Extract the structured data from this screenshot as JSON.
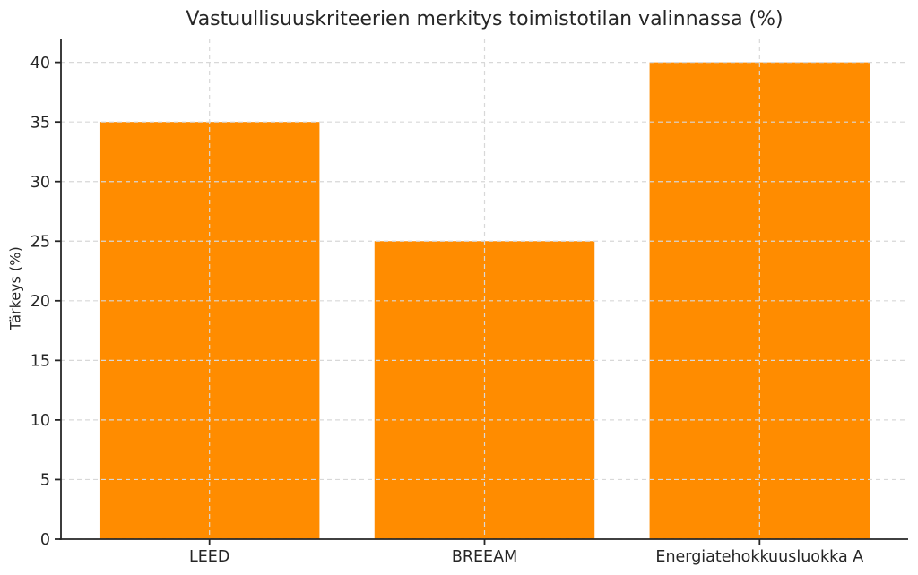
{
  "chart_data": {
    "type": "bar",
    "title": "Vastuullisuuskriteerien merkitys toimistotilan valinnassa (%)",
    "xlabel": "",
    "ylabel": "Tärkeys (%)",
    "categories": [
      "LEED",
      "BREEAM",
      "Energiatehokkuusluokka A"
    ],
    "values": [
      35,
      25,
      40
    ],
    "yticks": [
      0,
      5,
      10,
      15,
      20,
      25,
      30,
      35,
      40
    ],
    "ylim": [
      0,
      42
    ],
    "bar_color": "#FF8C00",
    "grid": true,
    "grid_color": "#d8d8d8",
    "grid_style": "dashed",
    "axis_color": "#262626",
    "text_color": "#262626",
    "background_color": "#ffffff",
    "legend": "none"
  }
}
